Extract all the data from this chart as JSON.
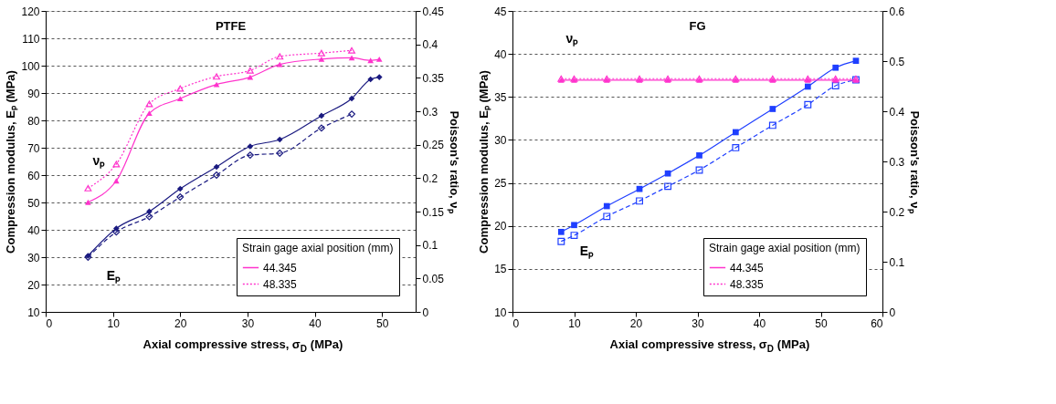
{
  "chart_data": [
    {
      "type": "line",
      "title": "PTFE",
      "xlabel": "Axial compressive stress, σ$_{D}$ (MPa)",
      "ylabel": "Compression modulus, Eₚ (MPa)",
      "y2label": "Poisson's ratio, νₚ",
      "legend_title": "Strain gage axial position (mm)",
      "xlim": [
        0,
        55
      ],
      "xticks": [
        0,
        10,
        20,
        30,
        40,
        50
      ],
      "ylim": [
        10,
        120
      ],
      "yticks": [
        10,
        20,
        30,
        40,
        50,
        60,
        70,
        80,
        90,
        100,
        110,
        120
      ],
      "y2lim": [
        0,
        0.45
      ],
      "y2ticks": [
        0,
        0.05,
        0.1,
        0.15,
        0.2,
        0.25,
        0.3,
        0.35,
        0.4,
        0.45
      ],
      "grid": "y",
      "legend": "bottom right",
      "annotations": [
        "νₚ",
        "Eₚ"
      ],
      "series": [
        {
          "color": "#1a1a80",
          "marker": "diamond",
          "line_style": "solid",
          "x": [
            6.3,
            10.5,
            15.4,
            20,
            25.4,
            30.4,
            34.8,
            41,
            45.5,
            48.3,
            49.6
          ],
          "values": [
            30.5,
            40.5,
            46.7,
            55,
            63,
            70.5,
            73,
            81.7,
            88,
            95,
            95.8
          ]
        },
        {
          "color": "#1a1a80",
          "marker": "diamond",
          "line_style": "dashed",
          "x": [
            6.3,
            10.5,
            15.4,
            20,
            25.4,
            30.4,
            34.8,
            41,
            45.5
          ],
          "values": [
            30,
            39.2,
            44.8,
            52,
            60,
            67.3,
            68,
            77.2,
            82.3
          ]
        },
        {
          "name": "44.345",
          "color": "#ff33cc",
          "marker": "triangle",
          "line_style": "solid",
          "axis": "y2",
          "x": [
            6.3,
            10.5,
            15.4,
            20,
            25.4,
            30.4,
            34.8,
            41,
            45.5,
            48.3,
            49.6
          ],
          "values": [
            0.164,
            0.196,
            0.297,
            0.319,
            0.34,
            0.351,
            0.37,
            0.378,
            0.38,
            0.376,
            0.378
          ]
        },
        {
          "name": "48.335",
          "color": "#ff33cc",
          "marker": "triangle",
          "line_style": "dotted",
          "axis": "y2",
          "x": [
            6.3,
            10.5,
            15.4,
            20,
            25.4,
            30.4,
            34.8,
            41,
            45.5
          ],
          "values": [
            0.185,
            0.221,
            0.311,
            0.334,
            0.352,
            0.361,
            0.382,
            0.387,
            0.391
          ]
        }
      ]
    },
    {
      "type": "line",
      "title": "FG",
      "xlabel": "Axial compressive stress, σ$_{D}$ (MPa)",
      "ylabel": "Compression modulus, Eₚ (MPa)",
      "y2label": "Poisson's ratio, νₚ",
      "legend_title": "Strain gage axial position (mm)",
      "xlim": [
        0,
        60
      ],
      "xticks": [
        0,
        10,
        20,
        30,
        40,
        50,
        60
      ],
      "ylim": [
        10,
        45
      ],
      "yticks": [
        10,
        15,
        20,
        25,
        30,
        35,
        40,
        45
      ],
      "y2lim": [
        0,
        0.6
      ],
      "y2ticks": [
        0,
        0.1,
        0.2,
        0.3,
        0.4,
        0.5,
        0.6
      ],
      "grid": "y",
      "legend": "bottom right",
      "annotations": [
        "νₚ",
        "Eₚ"
      ],
      "series": [
        {
          "color": "#1f3fff",
          "marker": "square",
          "line_style": "solid",
          "x": [
            7.9,
            10,
            15.3,
            20.6,
            25.2,
            30.3,
            36.2,
            42.2,
            47.9,
            52.4,
            55.7
          ],
          "values": [
            19.3,
            20.1,
            22.3,
            24.3,
            26.1,
            28.2,
            30.9,
            33.6,
            36.2,
            38.4,
            39.2
          ]
        },
        {
          "color": "#1f3fff",
          "marker": "square",
          "line_style": "dashed",
          "x": [
            7.9,
            10,
            15.3,
            20.6,
            25.2,
            30.3,
            36.2,
            42.2,
            47.9,
            52.4,
            55.7
          ],
          "values": [
            18.2,
            18.9,
            21.1,
            22.9,
            24.6,
            26.5,
            29.1,
            31.7,
            34.1,
            36.3,
            37.0
          ]
        },
        {
          "name": "44.345",
          "color": "#ff33cc",
          "marker": "triangle",
          "line_style": "solid",
          "axis": "y2",
          "x": [
            7.9,
            10,
            15.3,
            20.6,
            25.2,
            30.3,
            36.2,
            42.2,
            47.9,
            52.4,
            55.7
          ],
          "values": [
            0.462,
            0.462,
            0.462,
            0.462,
            0.462,
            0.462,
            0.462,
            0.462,
            0.462,
            0.462,
            0.462
          ]
        },
        {
          "name": "48.335",
          "color": "#ff33cc",
          "marker": "triangle",
          "line_style": "dotted",
          "axis": "y2",
          "x": [
            7.9,
            10,
            15.3,
            20.6,
            25.2,
            30.3,
            36.2,
            42.2,
            47.9,
            52.4,
            55.7
          ],
          "values": [
            0.465,
            0.465,
            0.465,
            0.465,
            0.465,
            0.465,
            0.465,
            0.465,
            0.465,
            0.465,
            0.465
          ]
        }
      ]
    }
  ]
}
